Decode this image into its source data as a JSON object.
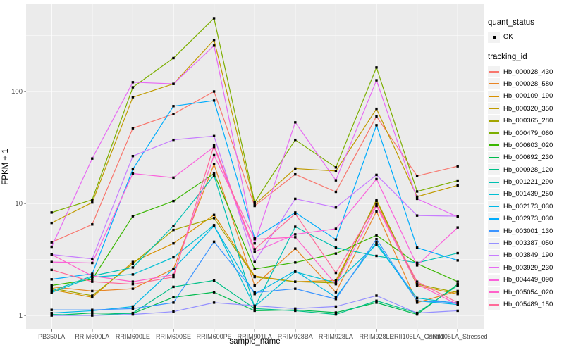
{
  "figure": {
    "x_axis_title": "sample_name",
    "y_axis_title": "FPKM + 1",
    "legend": {
      "quant_status_title": "quant_status",
      "quant_status_items": [
        "OK"
      ],
      "tracking_id_title": "tracking_id"
    },
    "colors": {
      "panel_bg": "#EBEBEB",
      "grid": "#FFFFFF",
      "tick_text": "#4D4D4D",
      "tick_mark": "#333333",
      "legend_key_bg": "#F2F2F2",
      "point": "#000000"
    }
  },
  "chart_data": {
    "type": "line",
    "title": "",
    "xlabel": "sample_name",
    "ylabel": "FPKM + 1",
    "yscale": "log10",
    "y_ticks": [
      1,
      10,
      100
    ],
    "y_minor_ticks": [
      3.162,
      31.62,
      316.2
    ],
    "ylim_log": [
      0.78,
      600
    ],
    "grid": true,
    "legend_position": "right",
    "point_shape": "filled-square",
    "categories": [
      "PB350LA",
      "RRIM600LA",
      "RRIM600LE",
      "RRIM600SE",
      "RRIM600PE",
      "RRIM901LA",
      "RRIM928BA",
      "RRIM928LA",
      "RRIM928LE",
      "RRII105LA_Control",
      "RRII105LA_Stressed"
    ],
    "series": [
      {
        "name": "Hb_000028_430",
        "color": "#F8766D",
        "values": [
          4.5,
          6.5,
          47,
          63,
          100,
          9.5,
          18.2,
          12.7,
          60,
          17.6,
          21.5
        ]
      },
      {
        "name": "Hb_000028_580",
        "color": "#E88526",
        "values": [
          1.8,
          1.65,
          1.73,
          2.6,
          22.4,
          1.85,
          3.95,
          1.61,
          8.5,
          1.3,
          1.65
        ]
      },
      {
        "name": "Hb_000109_190",
        "color": "#D89000",
        "values": [
          1.7,
          1.45,
          3.0,
          4.4,
          7.9,
          2.25,
          2.0,
          2.05,
          10.5,
          1.85,
          1.55
        ]
      },
      {
        "name": "Hb_000320_350",
        "color": "#C09B00",
        "values": [
          6.7,
          10.2,
          89,
          117,
          289,
          9.8,
          20.5,
          19.5,
          70,
          11.5,
          14.5
        ]
      },
      {
        "name": "Hb_000365_280",
        "color": "#A3A500",
        "values": [
          1.75,
          1.5,
          2.9,
          5.8,
          7.4,
          2.2,
          2.0,
          1.95,
          10.8,
          1.9,
          1.6
        ]
      },
      {
        "name": "Hb_000479_060",
        "color": "#7CAE00",
        "values": [
          8.3,
          10.8,
          109,
          199,
          451,
          10.2,
          37,
          21,
          164,
          12.8,
          16
        ]
      },
      {
        "name": "Hb_000603_020",
        "color": "#39B600",
        "values": [
          1.85,
          2.1,
          7.7,
          10.5,
          18.5,
          2.6,
          2.97,
          3.57,
          5.2,
          2.9,
          2.0
        ]
      },
      {
        "name": "Hb_000692_230",
        "color": "#00BB4E",
        "values": [
          1.0,
          1.05,
          1.04,
          1.45,
          1.61,
          1.1,
          1.12,
          1.06,
          1.3,
          1.02,
          1.9
        ]
      },
      {
        "name": "Hb_000928_120",
        "color": "#00C087",
        "values": [
          1.02,
          1.0,
          1.05,
          1.8,
          2.05,
          1.15,
          1.1,
          1.02,
          1.35,
          1.05,
          1.85
        ]
      },
      {
        "name": "Hb_001221_290",
        "color": "#00C0B2",
        "values": [
          1.65,
          2.25,
          2.68,
          6.3,
          17.8,
          1.18,
          6.2,
          4.03,
          3.4,
          2.95,
          3.6
        ]
      },
      {
        "name": "Hb_001439_250",
        "color": "#00BFD3",
        "values": [
          1.6,
          2.2,
          2.32,
          3.3,
          6.4,
          1.2,
          2.45,
          1.95,
          4.3,
          1.43,
          1.28
        ]
      },
      {
        "name": "Hb_002173_030",
        "color": "#00B8E7",
        "values": [
          1.05,
          1.1,
          1.2,
          2.6,
          6.3,
          1.55,
          2.5,
          1.45,
          4.5,
          1.35,
          1.25
        ]
      },
      {
        "name": "Hb_002973_030",
        "color": "#00ACFC",
        "values": [
          2.1,
          2.35,
          20.2,
          74,
          83,
          4.9,
          8.3,
          4.77,
          50,
          4.03,
          3.1
        ]
      },
      {
        "name": "Hb_003001_130",
        "color": "#3D95FF",
        "values": [
          1.12,
          1.12,
          1.15,
          1.3,
          4.55,
          1.6,
          1.73,
          1.4,
          4.8,
          1.35,
          1.3
        ]
      },
      {
        "name": "Hb_003387_050",
        "color": "#9590FF",
        "values": [
          1.0,
          1.0,
          1.02,
          1.08,
          1.3,
          1.22,
          1.15,
          1.2,
          1.5,
          1.05,
          1.1
        ]
      },
      {
        "name": "Hb_003849_190",
        "color": "#C77CFF",
        "values": [
          3.5,
          3.2,
          26.5,
          37,
          40,
          3.0,
          11,
          9.2,
          18,
          7.8,
          7.7
        ]
      },
      {
        "name": "Hb_003929_230",
        "color": "#E76BF3",
        "values": [
          4.1,
          25.2,
          121,
          117,
          257,
          4.4,
          53,
          16.1,
          126,
          11,
          7.6
        ]
      },
      {
        "name": "Hb_004449_090",
        "color": "#FA62DB",
        "values": [
          3.0,
          2.94,
          18.5,
          17,
          32,
          3.7,
          5.3,
          5.94,
          16.5,
          2.8,
          6.1
        ]
      },
      {
        "name": "Hb_005054_020",
        "color": "#FF61C9",
        "values": [
          3.5,
          2.25,
          2.0,
          2.3,
          27,
          4.8,
          5.0,
          1.9,
          9.5,
          1.9,
          1.25
        ]
      },
      {
        "name": "Hb_005489_150",
        "color": "#FF6A98",
        "values": [
          2.55,
          2.0,
          1.9,
          2.2,
          33,
          3.9,
          8.1,
          2.4,
          9.8,
          2.0,
          1.3
        ]
      }
    ]
  }
}
